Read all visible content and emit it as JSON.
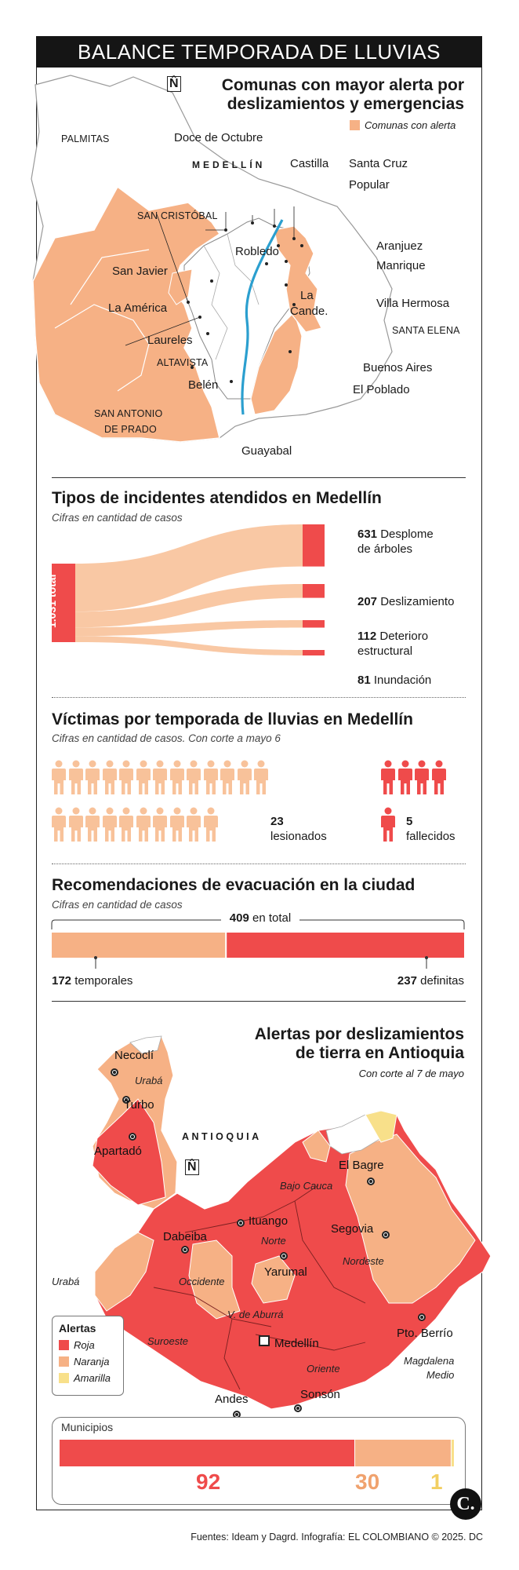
{
  "banner": {
    "title": "BALANCE TEMPORADA DE LLUVIAS"
  },
  "map1": {
    "title_line1": "Comunas con mayor alerta por",
    "title_line2": "deslizamientos y emergencias",
    "legend_label": "Comunas con alerta",
    "city_label": "MEDELLÍN",
    "north_symbol": "N̂",
    "labels": {
      "palmitas": "PALMITAS",
      "doce_octubre": "Doce de Octubre",
      "castilla": "Castilla",
      "santa_cruz": "Santa Cruz",
      "popular": "Popular",
      "san_cristobal": "SAN CRISTÓBAL",
      "robledo": "Robledo",
      "aranjuez": "Aranjuez",
      "manrique": "Manrique",
      "san_javier": "San Javier",
      "la_america": "La América",
      "la_cande_1": "La",
      "la_cande_2": "Cande.",
      "villa_hermosa": "Villa Hermosa",
      "santa_elena": "SANTA ELENA",
      "laureles": "Laureles",
      "altavista": "ALTAVISTA",
      "buenos_aires": "Buenos Aires",
      "belen": "Belén",
      "el_poblado": "El Poblado",
      "san_antonio_1": "SAN ANTONIO",
      "san_antonio_2": "DE PRADO",
      "guayabal": "Guayabal"
    }
  },
  "incidents": {
    "title": "Tipos de incidentes atendidos en Medellín",
    "subtitle": "Cifras en cantidad de casos",
    "total_label": "1.031 total",
    "items": [
      {
        "value": "631",
        "label_1": "Desplome",
        "label_2": "de árboles"
      },
      {
        "value": "207",
        "label_1": "Deslizamiento",
        "label_2": ""
      },
      {
        "value": "112",
        "label_1": "Deterioro",
        "label_2": "estructural"
      },
      {
        "value": "81",
        "label_1": "Inundación",
        "label_2": ""
      }
    ]
  },
  "chart_data": [
    {
      "type": "bar",
      "title": "Tipos de incidentes atendidos en Medellín",
      "categories": [
        "Desplome de árboles",
        "Deslizamiento",
        "Deterioro estructural",
        "Inundación"
      ],
      "values": [
        631,
        207,
        112,
        81
      ],
      "total": 1031
    },
    {
      "type": "bar",
      "title": "Víctimas por temporada de lluvias en Medellín",
      "categories": [
        "lesionados",
        "fallecidos"
      ],
      "values": [
        23,
        5
      ]
    },
    {
      "type": "bar",
      "title": "Recomendaciones de evacuación en la ciudad",
      "categories": [
        "temporales",
        "definitas"
      ],
      "values": [
        172,
        237
      ],
      "total": 409
    },
    {
      "type": "bar",
      "title": "Municipios",
      "categories": [
        "Roja",
        "Naranja",
        "Amarilla"
      ],
      "values": [
        92,
        30,
        1
      ]
    }
  ],
  "victims": {
    "title": "Víctimas por temporada de lluvias en Medellín",
    "subtitle": "Cifras en cantidad de casos. Con corte a mayo 6",
    "injured_value": "23",
    "injured_label": "lesionados",
    "dead_value": "5",
    "dead_label": "fallecidos",
    "injured_count": 23,
    "dead_count": 5
  },
  "evacuation": {
    "title": "Recomendaciones de evacuación en la ciudad",
    "subtitle": "Cifras en cantidad de casos",
    "total_value": "409",
    "total_label": "en total",
    "temp_value": "172",
    "temp_label": "temporales",
    "def_value": "237",
    "def_label": "definitas"
  },
  "map2": {
    "title_line1": "Alertas por deslizamientos",
    "title_line2": "de tierra en Antioquia",
    "subtitle": "Con corte al 7 de mayo",
    "dept_label": "ANTIOQUIA",
    "north_symbol": "N̂",
    "legend_title": "Alertas",
    "legend": [
      {
        "label": "Roja",
        "color": "#ef4b4b"
      },
      {
        "label": "Naranja",
        "color": "#f6b185"
      },
      {
        "label": "Amarilla",
        "color": "#f8e08a"
      }
    ],
    "cities": {
      "necocli": "Necoclí",
      "turbo": "Turbo",
      "apartado": "Apartadó",
      "el_bagre": "El Bagre",
      "ituango": "Ituango",
      "dabeiba": "Dabeiba",
      "segovia": "Segovia",
      "yarumal": "Yarumal",
      "pto_berrio": "Pto. Berrío",
      "medellin": "Medellín",
      "andes": "Andes",
      "sonson": "Sonsón"
    },
    "regions": {
      "uraba_top": "Urabá",
      "bajo_cauca": "Bajo Cauca",
      "norte": "Norte",
      "nordeste": "Nordeste",
      "occidente": "Occidente",
      "uraba_left": "Urabá",
      "v_aburra": "V. de Aburrá",
      "suroeste": "Suroeste",
      "oriente": "Oriente",
      "magdalena_1": "Magdalena",
      "magdalena_2": "Medio"
    },
    "municipios_label": "Municipios",
    "municipios_roja": "92",
    "municipios_naranja": "30",
    "municipios_amarilla": "1"
  },
  "footer": {
    "text": "Fuentes: Ideam y Dagrd. Infografía: EL COLOMBIANO © 2025. DC",
    "logo": "C."
  },
  "colors": {
    "orange": "#f6b185",
    "red": "#ef4b4b",
    "yellow": "#f8e08a",
    "river": "#2b9fcf"
  }
}
